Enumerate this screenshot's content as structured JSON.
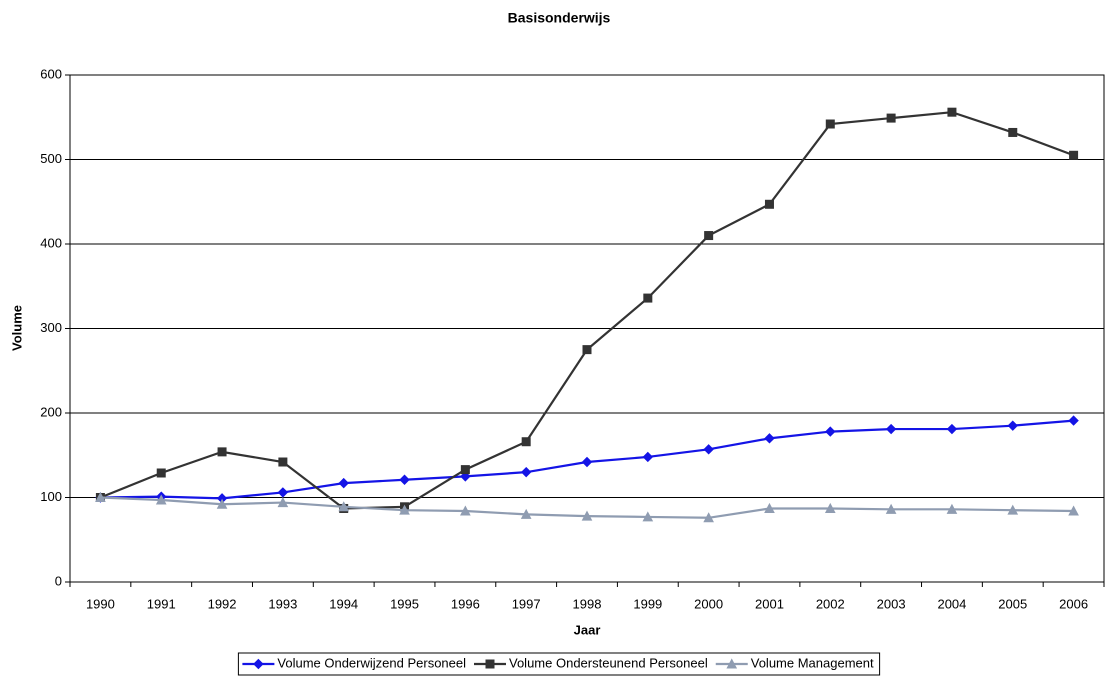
{
  "chart_data": {
    "type": "line",
    "title": "Basisonderwijs",
    "x_label": "Jaar",
    "y_label": "Volume",
    "categories": [
      "1990",
      "1991",
      "1992",
      "1993",
      "1994",
      "1995",
      "1996",
      "1997",
      "1998",
      "1999",
      "2000",
      "2001",
      "2002",
      "2003",
      "2004",
      "2005",
      "2006"
    ],
    "series": [
      {
        "name": "Volume Onderwijzend Personeel",
        "color": "#1414e6",
        "marker": "diamond",
        "values": [
          100,
          101,
          99,
          106,
          117,
          121,
          125,
          130,
          142,
          148,
          157,
          170,
          178,
          181,
          181,
          185,
          191
        ]
      },
      {
        "name": "Volume Ondersteunend Personeel",
        "color": "#333333",
        "marker": "square",
        "values": [
          100,
          129,
          154,
          142,
          87,
          89,
          133,
          166,
          275,
          336,
          410,
          447,
          542,
          549,
          556,
          532,
          505
        ]
      },
      {
        "name": "Volume Management",
        "color": "#8f9cb1",
        "marker": "triangle",
        "values": [
          100,
          97,
          92,
          94,
          89,
          85,
          84,
          80,
          78,
          77,
          76,
          87,
          87,
          86,
          86,
          85,
          84
        ]
      }
    ],
    "ylim": [
      0,
      600
    ],
    "yticks": [
      0,
      100,
      200,
      300,
      400,
      500,
      600
    ],
    "grid": true,
    "legend": "bottom"
  }
}
